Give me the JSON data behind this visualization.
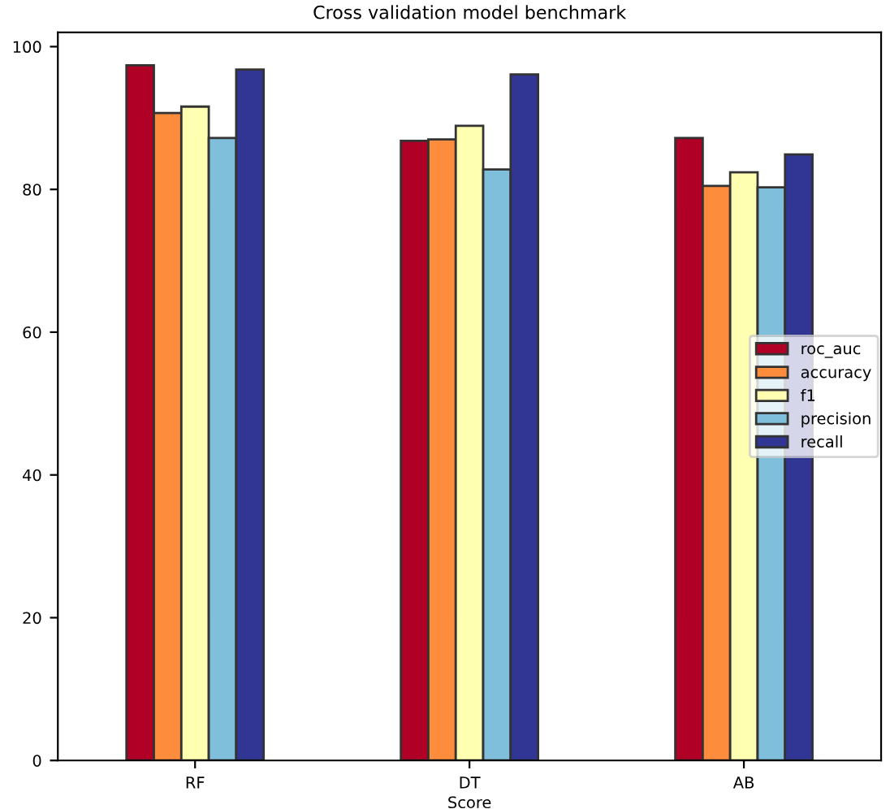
{
  "chart_data": {
    "type": "bar",
    "title": "Cross validation model benchmark",
    "xlabel": "Score",
    "categories": [
      "RF",
      "DT",
      "AB"
    ],
    "series": [
      {
        "name": "roc_auc",
        "color": "#b10026",
        "values": [
          97.4,
          86.8,
          87.2
        ]
      },
      {
        "name": "accuracy",
        "color": "#fd8d3c",
        "values": [
          90.7,
          87.0,
          80.5
        ]
      },
      {
        "name": "f1",
        "color": "#ffffb2",
        "values": [
          91.6,
          88.9,
          82.4
        ]
      },
      {
        "name": "precision",
        "color": "#7fbfdc",
        "values": [
          87.2,
          82.8,
          80.3
        ]
      },
      {
        "name": "recall",
        "color": "#313695",
        "values": [
          96.8,
          96.1,
          84.9
        ]
      }
    ],
    "ylim": [
      0,
      102
    ],
    "yticks": [
      0,
      20,
      40,
      60,
      80,
      100
    ],
    "legend": "right",
    "grid": false
  }
}
